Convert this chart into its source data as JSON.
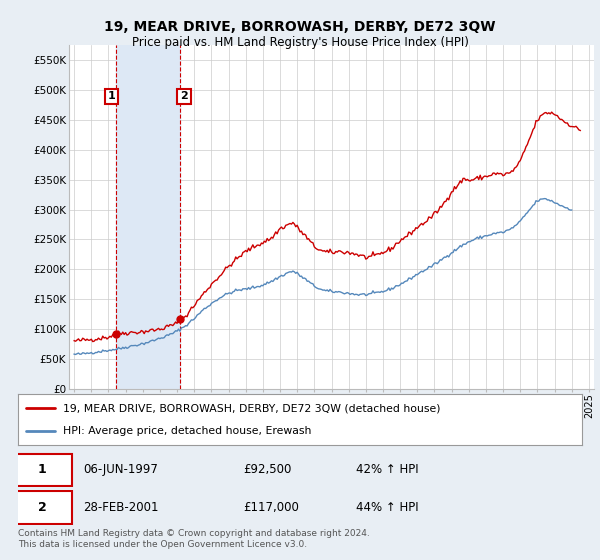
{
  "title": "19, MEAR DRIVE, BORROWASH, DERBY, DE72 3QW",
  "subtitle": "Price paid vs. HM Land Registry's House Price Index (HPI)",
  "red_label": "19, MEAR DRIVE, BORROWASH, DERBY, DE72 3QW (detached house)",
  "blue_label": "HPI: Average price, detached house, Erewash",
  "transaction1_label": "06-JUN-1997",
  "transaction1_price": "£92,500",
  "transaction1_hpi": "42% ↑ HPI",
  "transaction2_label": "28-FEB-2001",
  "transaction2_price": "£117,000",
  "transaction2_hpi": "44% ↑ HPI",
  "footer": "Contains HM Land Registry data © Crown copyright and database right 2024.\nThis data is licensed under the Open Government Licence v3.0.",
  "red_color": "#cc0000",
  "blue_color": "#5588bb",
  "bg_color": "#e8eef4",
  "plot_bg": "#ffffff",
  "span_color": "#dde8f5",
  "ylim": [
    0,
    575000
  ],
  "yticks": [
    0,
    50000,
    100000,
    150000,
    200000,
    250000,
    300000,
    350000,
    400000,
    450000,
    500000,
    550000
  ],
  "ytick_labels": [
    "£0",
    "£50K",
    "£100K",
    "£150K",
    "£200K",
    "£250K",
    "£300K",
    "£350K",
    "£400K",
    "£450K",
    "£500K",
    "£550K"
  ],
  "transaction1_date_idx": 1997.42,
  "transaction1_value": 92500,
  "transaction2_date_idx": 2001.16,
  "transaction2_value": 117000,
  "xlim_min": 1994.7,
  "xlim_max": 2025.3
}
